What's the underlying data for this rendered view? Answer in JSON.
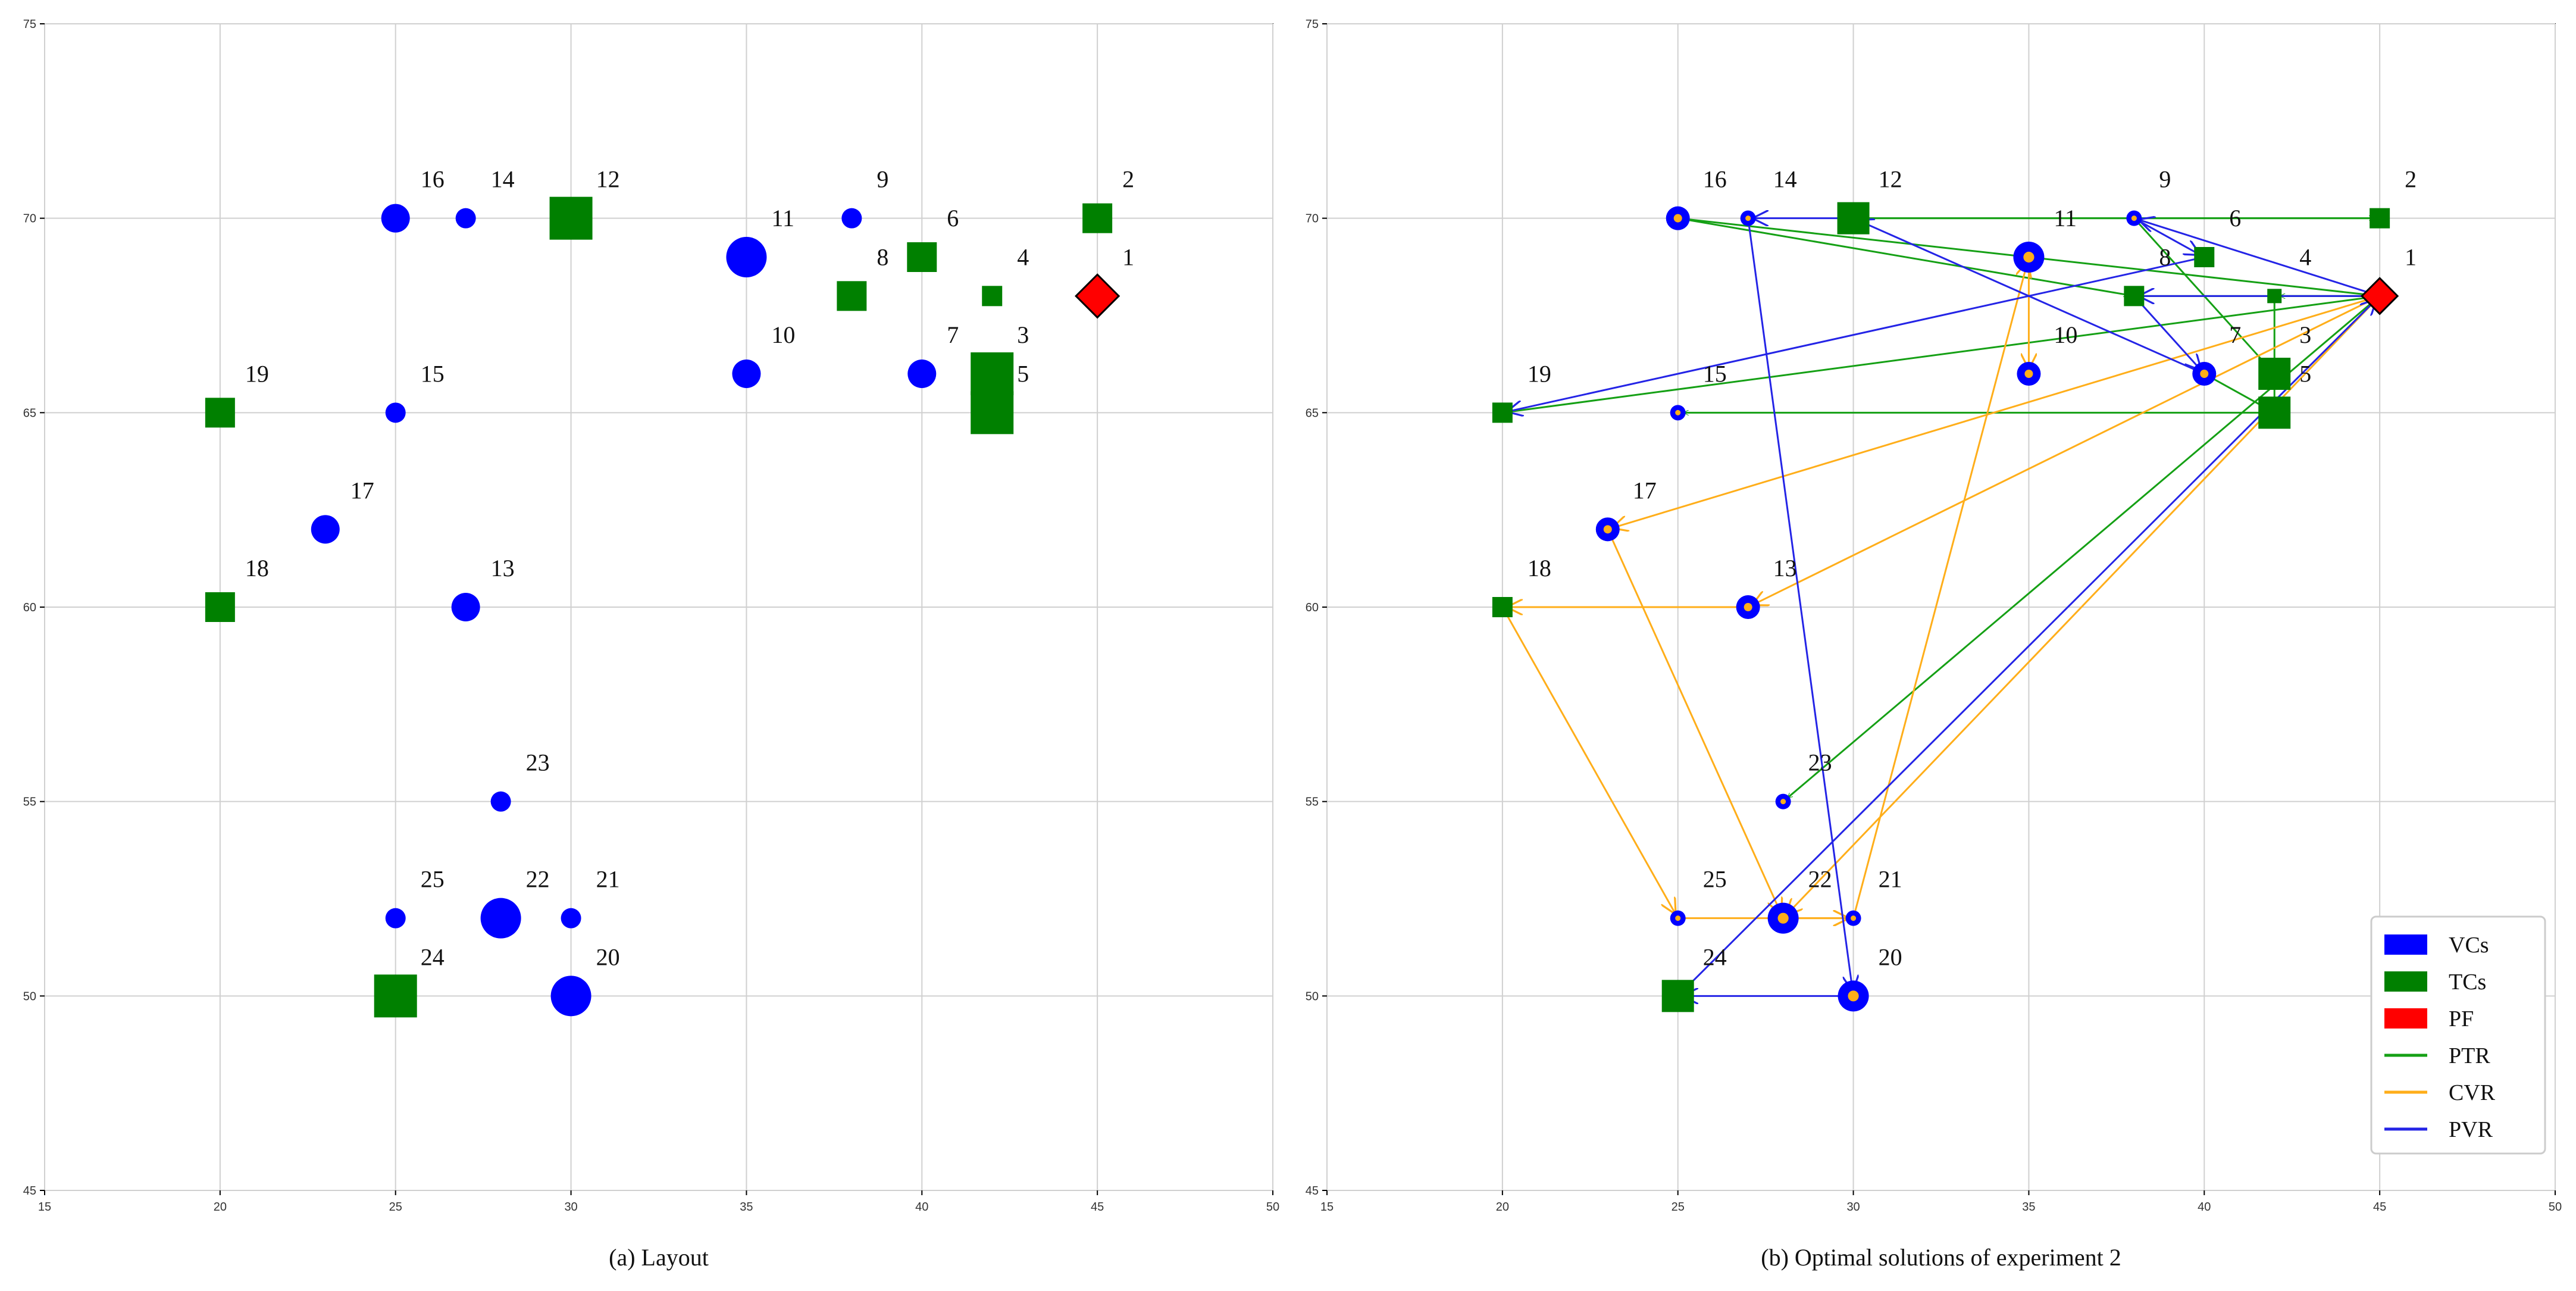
{
  "chart_data": [
    {
      "type": "scatter",
      "caption": "(a) Layout",
      "xlim": [
        15,
        50
      ],
      "ylim": [
        45,
        75
      ],
      "xticks": [
        "15",
        "20",
        "25",
        "30",
        "35",
        "40",
        "45",
        "50"
      ],
      "yticks": [
        "45",
        "50",
        "55",
        "60",
        "65",
        "70",
        "75"
      ],
      "grid": true,
      "nodes": [
        {
          "id": "1",
          "x": 45,
          "y": 68,
          "kind": "PF",
          "size": 2
        },
        {
          "id": "2",
          "x": 45,
          "y": 70,
          "kind": "TC",
          "size": 2
        },
        {
          "id": "3",
          "x": 42,
          "y": 66,
          "kind": "TC",
          "size": 3
        },
        {
          "id": "4",
          "x": 42,
          "y": 68,
          "kind": "TC",
          "size": 1
        },
        {
          "id": "5",
          "x": 42,
          "y": 65,
          "kind": "TC",
          "size": 3
        },
        {
          "id": "6",
          "x": 40,
          "y": 69,
          "kind": "TC",
          "size": 2
        },
        {
          "id": "7",
          "x": 40,
          "y": 66,
          "kind": "VC",
          "size": 2
        },
        {
          "id": "8",
          "x": 38,
          "y": 68,
          "kind": "TC",
          "size": 2
        },
        {
          "id": "9",
          "x": 38,
          "y": 70,
          "kind": "VC",
          "size": 1
        },
        {
          "id": "10",
          "x": 35,
          "y": 66,
          "kind": "VC",
          "size": 2
        },
        {
          "id": "11",
          "x": 35,
          "y": 69,
          "kind": "VC",
          "size": 3
        },
        {
          "id": "12",
          "x": 30,
          "y": 70,
          "kind": "TC",
          "size": 3
        },
        {
          "id": "13",
          "x": 27,
          "y": 60,
          "kind": "VC",
          "size": 2
        },
        {
          "id": "14",
          "x": 27,
          "y": 70,
          "kind": "VC",
          "size": 1
        },
        {
          "id": "15",
          "x": 25,
          "y": 65,
          "kind": "VC",
          "size": 1
        },
        {
          "id": "16",
          "x": 25,
          "y": 70,
          "kind": "VC",
          "size": 2
        },
        {
          "id": "17",
          "x": 23,
          "y": 62,
          "kind": "VC",
          "size": 2
        },
        {
          "id": "18",
          "x": 20,
          "y": 60,
          "kind": "TC",
          "size": 2
        },
        {
          "id": "19",
          "x": 20,
          "y": 65,
          "kind": "TC",
          "size": 2
        },
        {
          "id": "20",
          "x": 30,
          "y": 50,
          "kind": "VC",
          "size": 3
        },
        {
          "id": "21",
          "x": 30,
          "y": 52,
          "kind": "VC",
          "size": 1
        },
        {
          "id": "22",
          "x": 28,
          "y": 52,
          "kind": "VC",
          "size": 3
        },
        {
          "id": "23",
          "x": 28,
          "y": 55,
          "kind": "VC",
          "size": 1
        },
        {
          "id": "24",
          "x": 25,
          "y": 50,
          "kind": "TC",
          "size": 3
        },
        {
          "id": "25",
          "x": 25,
          "y": 52,
          "kind": "VC",
          "size": 1
        }
      ]
    },
    {
      "type": "scatter",
      "caption": "(b) Optimal solutions of experiment 2",
      "xlim": [
        15,
        50
      ],
      "ylim": [
        45,
        75
      ],
      "xticks": [
        "15",
        "20",
        "25",
        "30",
        "35",
        "40",
        "45",
        "50"
      ],
      "yticks": [
        "45",
        "50",
        "55",
        "60",
        "65",
        "70",
        "75"
      ],
      "grid": true,
      "legend_position": "bottom-right",
      "legend": [
        {
          "label": "VCs",
          "kind": "patch",
          "color": "#0000ff"
        },
        {
          "label": "TCs",
          "kind": "patch",
          "color": "#008000"
        },
        {
          "label": "PF",
          "kind": "patch",
          "color": "#ff0000"
        },
        {
          "label": "PTR",
          "kind": "line",
          "color": "#15a015"
        },
        {
          "label": "CVR",
          "kind": "line",
          "color": "#ffae1a"
        },
        {
          "label": "PVR",
          "kind": "line",
          "color": "#2424e6"
        }
      ],
      "routes": [
        {
          "name": "PTR",
          "color": "#15a015",
          "edges": [
            [
              1,
              4
            ],
            [
              4,
              3
            ],
            [
              3,
              5
            ],
            [
              5,
              15
            ],
            [
              1,
              23
            ],
            [
              1,
              16
            ],
            [
              16,
              8
            ],
            [
              8,
              1
            ],
            [
              1,
              19
            ],
            [
              12,
              2
            ],
            [
              2,
              12
            ],
            [
              9,
              3
            ],
            [
              7,
              5
            ]
          ]
        },
        {
          "name": "CVR",
          "color": "#ffae1a",
          "edges": [
            [
              1,
              17
            ],
            [
              17,
              22
            ],
            [
              22,
              21
            ],
            [
              21,
              11
            ],
            [
              11,
              10
            ],
            [
              1,
              13
            ],
            [
              13,
              18
            ],
            [
              18,
              25
            ],
            [
              25,
              21
            ],
            [
              1,
              22
            ]
          ]
        },
        {
          "name": "PVR",
          "color": "#2424e6",
          "edges": [
            [
              1,
              8
            ],
            [
              8,
              7
            ],
            [
              7,
              12
            ],
            [
              12,
              14
            ],
            [
              14,
              20
            ],
            [
              20,
              24
            ],
            [
              24,
              1
            ],
            [
              1,
              9
            ],
            [
              9,
              6
            ],
            [
              6,
              19
            ]
          ]
        }
      ]
    }
  ]
}
